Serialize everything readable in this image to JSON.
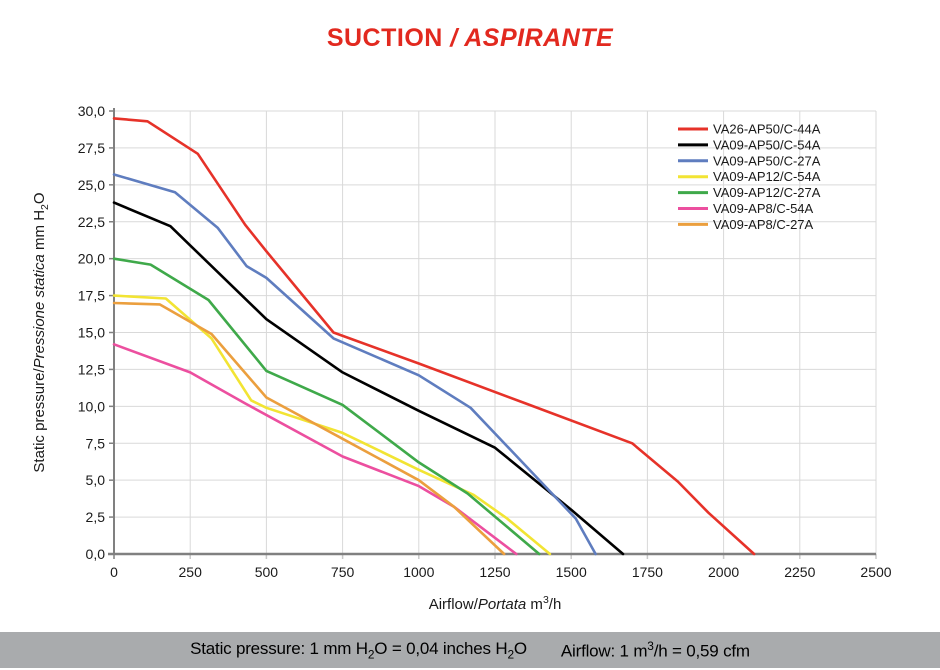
{
  "title": {
    "parts": [
      {
        "t": "SUCTION "
      },
      {
        "t": "/ ASPIRANTE",
        "i": true
      }
    ],
    "color": "#e2291f"
  },
  "footer": {
    "note1_parts": [
      {
        "t": "Static pressure: 1 mm H"
      },
      {
        "t": "2",
        "sub": true
      },
      {
        "t": "O = 0,04 inches H"
      },
      {
        "t": "2",
        "sub": true
      },
      {
        "t": "O"
      }
    ],
    "note2_parts": [
      {
        "t": "Airflow: 1 m"
      },
      {
        "t": "3",
        "sup": true
      },
      {
        "t": "/h = 0,59 cfm"
      }
    ]
  },
  "chart_data": {
    "type": "line",
    "title": "SUCTION / ASPIRANTE",
    "xlabel_parts": [
      {
        "t": "Airflow/"
      },
      {
        "t": "Portata",
        "i": true
      },
      {
        "t": "  m"
      },
      {
        "t": "3",
        "sup": true
      },
      {
        "t": "/h"
      }
    ],
    "ylabel_parts": [
      {
        "t": "Static pressure/"
      },
      {
        "t": "Pressione statica",
        "i": true
      },
      {
        "t": "  mm  H"
      },
      {
        "t": "2",
        "sub": true
      },
      {
        "t": "O"
      }
    ],
    "xlim": [
      0,
      2500
    ],
    "ylim": [
      0,
      30
    ],
    "grid": true,
    "legend_position": "top-right",
    "x_ticks": [
      {
        "v": 0,
        "label": "0"
      },
      {
        "v": 250,
        "label": "250"
      },
      {
        "v": 500,
        "label": "500"
      },
      {
        "v": 750,
        "label": "750"
      },
      {
        "v": 1000,
        "label": "1000"
      },
      {
        "v": 1250,
        "label": "1250"
      },
      {
        "v": 1500,
        "label": "1500"
      },
      {
        "v": 1750,
        "label": "1750"
      },
      {
        "v": 2000,
        "label": "2000"
      },
      {
        "v": 2250,
        "label": "2250"
      },
      {
        "v": 2500,
        "label": "2500"
      }
    ],
    "y_ticks": [
      {
        "v": 0,
        "label": "0,0"
      },
      {
        "v": 2.5,
        "label": "2,5"
      },
      {
        "v": 5,
        "label": "5,0"
      },
      {
        "v": 7.5,
        "label": "7,5"
      },
      {
        "v": 10,
        "label": "10,0"
      },
      {
        "v": 12.5,
        "label": "12,5"
      },
      {
        "v": 15,
        "label": "15,0"
      },
      {
        "v": 17.5,
        "label": "17,5"
      },
      {
        "v": 20,
        "label": "20,0"
      },
      {
        "v": 22.5,
        "label": "22,5"
      },
      {
        "v": 25,
        "label": "25,0"
      },
      {
        "v": 27.5,
        "label": "27,5"
      },
      {
        "v": 30,
        "label": "30,0"
      }
    ],
    "series": [
      {
        "name": "VA26-AP50/C-44A",
        "color": "#e63229",
        "points": [
          [
            0,
            29.5
          ],
          [
            110,
            29.3
          ],
          [
            275,
            27.1
          ],
          [
            430,
            22.3
          ],
          [
            500,
            20.5
          ],
          [
            720,
            15.0
          ],
          [
            1000,
            12.9
          ],
          [
            1350,
            10.2
          ],
          [
            1700,
            7.5
          ],
          [
            1850,
            4.9
          ],
          [
            1950,
            2.8
          ],
          [
            2100,
            0
          ]
        ]
      },
      {
        "name": "VA09-AP50/C-54A",
        "color": "#000000",
        "points": [
          [
            0,
            23.8
          ],
          [
            185,
            22.2
          ],
          [
            250,
            20.9
          ],
          [
            500,
            15.9
          ],
          [
            750,
            12.3
          ],
          [
            1000,
            9.7
          ],
          [
            1250,
            7.2
          ],
          [
            1500,
            3.0
          ],
          [
            1670,
            0
          ]
        ]
      },
      {
        "name": "VA09-AP50/C-27A",
        "color": "#5f7dbf",
        "points": [
          [
            0,
            25.7
          ],
          [
            200,
            24.5
          ],
          [
            340,
            22.1
          ],
          [
            435,
            19.5
          ],
          [
            500,
            18.7
          ],
          [
            720,
            14.6
          ],
          [
            1000,
            12.1
          ],
          [
            1170,
            9.9
          ],
          [
            1400,
            4.9
          ],
          [
            1515,
            2.4
          ],
          [
            1580,
            0
          ]
        ]
      },
      {
        "name": "VA09-AP12/C-54A",
        "color": "#f2e433",
        "points": [
          [
            0,
            17.5
          ],
          [
            170,
            17.3
          ],
          [
            320,
            14.6
          ],
          [
            450,
            10.4
          ],
          [
            500,
            9.9
          ],
          [
            750,
            8.2
          ],
          [
            1000,
            5.7
          ],
          [
            1180,
            4.0
          ],
          [
            1290,
            2.4
          ],
          [
            1430,
            0
          ]
        ]
      },
      {
        "name": "VA09-AP12/C-27A",
        "color": "#3fa94a",
        "points": [
          [
            0,
            20.0
          ],
          [
            120,
            19.6
          ],
          [
            310,
            17.2
          ],
          [
            500,
            12.4
          ],
          [
            750,
            10.1
          ],
          [
            1000,
            6.2
          ],
          [
            1160,
            4.1
          ],
          [
            1395,
            0
          ]
        ]
      },
      {
        "name": "VA09-AP8/C-54A",
        "color": "#ec4f9f",
        "points": [
          [
            0,
            14.2
          ],
          [
            250,
            12.3
          ],
          [
            430,
            10.2
          ],
          [
            750,
            6.6
          ],
          [
            1000,
            4.6
          ],
          [
            1115,
            3.2
          ],
          [
            1320,
            0
          ]
        ]
      },
      {
        "name": "VA09-AP8/C-27A",
        "color": "#eb9f3e",
        "points": [
          [
            0,
            17.0
          ],
          [
            150,
            16.9
          ],
          [
            320,
            14.9
          ],
          [
            500,
            10.6
          ],
          [
            750,
            7.8
          ],
          [
            1000,
            5.0
          ],
          [
            1115,
            3.2
          ],
          [
            1280,
            0
          ]
        ]
      }
    ],
    "colors": {
      "grid": "#d9d9d9",
      "axis": "#808080",
      "tick_label": "#1a1a1a"
    }
  }
}
